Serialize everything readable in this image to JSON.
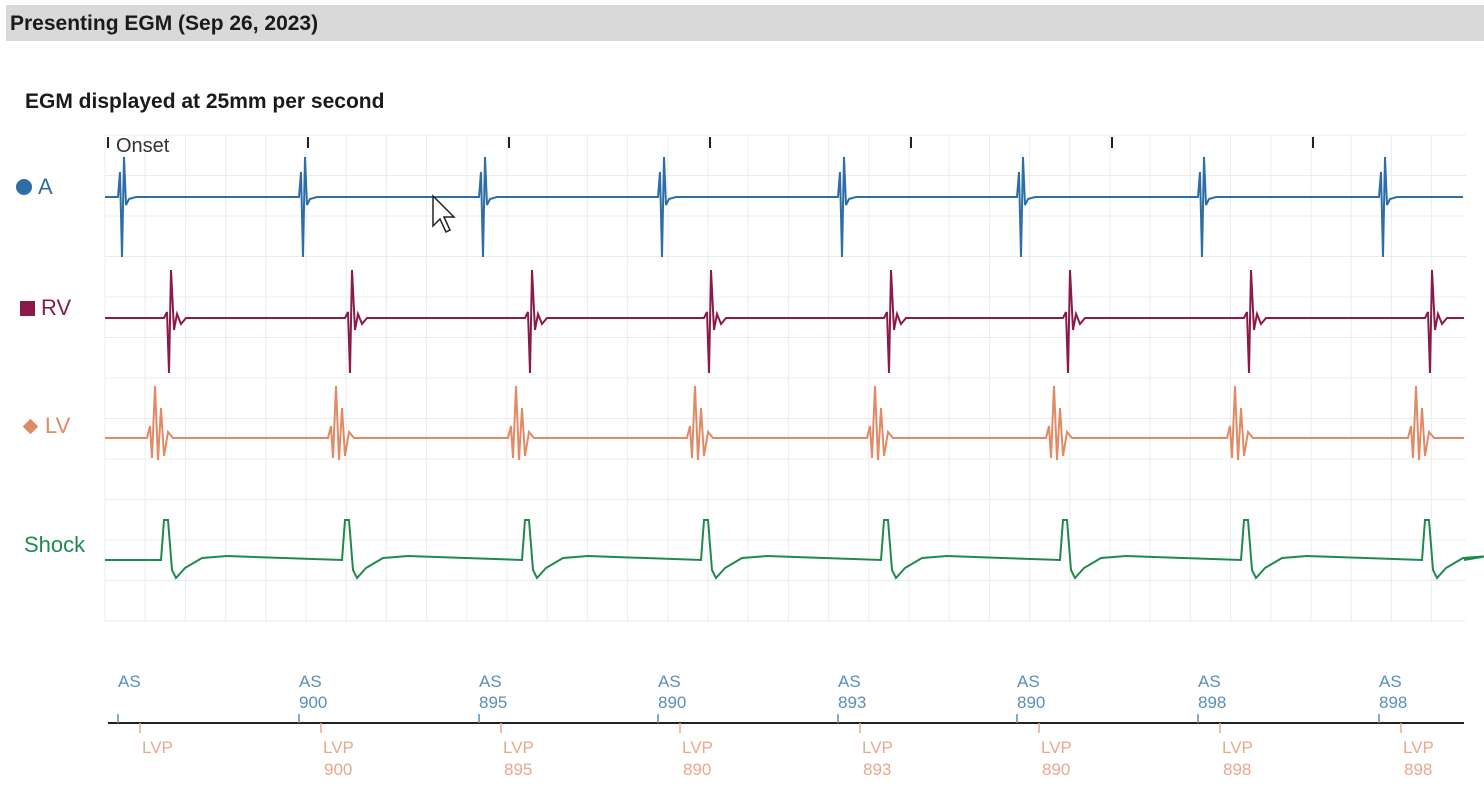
{
  "header": {
    "title": "Presenting EGM (Sep 26, 2023)"
  },
  "subtitle": "EGM displayed at 25mm per second",
  "onset_label": "Onset",
  "colors": {
    "A": "#2e6ea6",
    "RV": "#8a1a4a",
    "LV": "#e08a66",
    "Shock": "#1f8a4c",
    "marker_A": "#5a8fb8",
    "marker_LV": "#e9a88c",
    "grid": "#ececec"
  },
  "channels": [
    {
      "key": "A",
      "label": "A",
      "marker": "circle"
    },
    {
      "key": "RV",
      "label": "RV",
      "marker": "square"
    },
    {
      "key": "LV",
      "label": "LV",
      "marker": "diamond"
    },
    {
      "key": "Shock",
      "label": "Shock",
      "marker": "none"
    }
  ],
  "chart_data": {
    "type": "line",
    "title": "EGM displayed at 25mm per second",
    "beats": 8,
    "atrial_markers": [
      {
        "label": "AS",
        "interval": ""
      },
      {
        "label": "AS",
        "interval": "900"
      },
      {
        "label": "AS",
        "interval": "895"
      },
      {
        "label": "AS",
        "interval": "890"
      },
      {
        "label": "AS",
        "interval": "893"
      },
      {
        "label": "AS",
        "interval": "890"
      },
      {
        "label": "AS",
        "interval": "898"
      },
      {
        "label": "AS",
        "interval": "898"
      }
    ],
    "ventricular_markers": [
      {
        "label": "LVP",
        "interval": ""
      },
      {
        "label": "LVP",
        "interval": "900"
      },
      {
        "label": "LVP",
        "interval": "895"
      },
      {
        "label": "LVP",
        "interval": "890"
      },
      {
        "label": "LVP",
        "interval": "893"
      },
      {
        "label": "LVP",
        "interval": "890"
      },
      {
        "label": "LVP",
        "interval": "898"
      },
      {
        "label": "LVP",
        "interval": "898"
      }
    ]
  }
}
